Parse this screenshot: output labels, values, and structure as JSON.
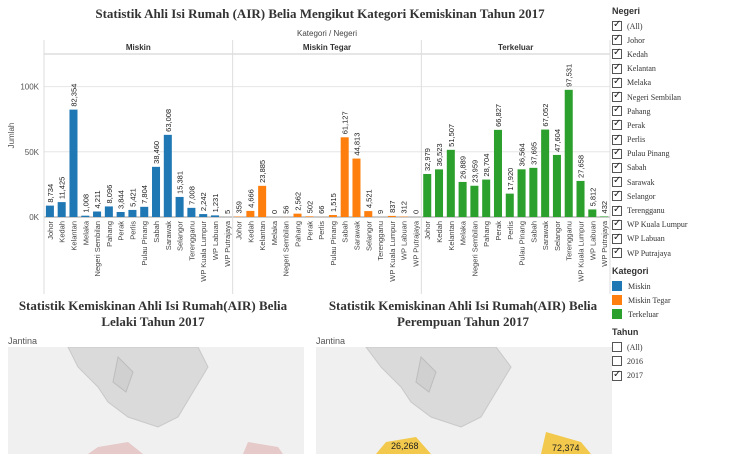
{
  "title": "Statistik Ahli Isi Rumah (AIR) Belia Mengikut Kategori Kemiskinan Tahun 2017",
  "header_label": "Kategori  /  Negeri",
  "panels": [
    "Miskin",
    "Miskin Tegar",
    "Terkeluar"
  ],
  "ylabel": "Jumlah",
  "chart_data": {
    "type": "bar",
    "title": "Statistik Ahli Isi Rumah (AIR) Belia Mengikut Kategori Kemiskinan Tahun 2017",
    "ylabel": "Jumlah",
    "ylim": [
      0,
      125000
    ],
    "yticks": [
      {
        "v": 0,
        "label": "0K"
      },
      {
        "v": 50000,
        "label": "50K"
      },
      {
        "v": 100000,
        "label": "100K"
      }
    ],
    "categories": [
      "Johor",
      "Kedah",
      "Kelantan",
      "Melaka",
      "Negeri Sembilan",
      "Pahang",
      "Perak",
      "Perlis",
      "Pulau Pinang",
      "Sabah",
      "Sarawak",
      "Selangor",
      "Terengganu",
      "WP Kuala Lumpur",
      "WP Labuan",
      "WP Putrajaya"
    ],
    "series": [
      {
        "name": "Miskin",
        "color": "#1f77b4",
        "values": [
          8734,
          11425,
          82354,
          1008,
          4211,
          8096,
          3844,
          5421,
          7804,
          38460,
          63008,
          15381,
          7008,
          2242,
          1231,
          5
        ]
      },
      {
        "name": "Miskin Tegar",
        "color": "#ff7f0e",
        "values": [
          359,
          4666,
          23885,
          0,
          56,
          2562,
          502,
          66,
          1515,
          61127,
          44813,
          4521,
          9,
          837,
          312,
          0
        ]
      },
      {
        "name": "Terkeluar",
        "color": "#2ca02c",
        "values": [
          32979,
          36523,
          51507,
          26889,
          23959,
          28704,
          66827,
          17920,
          36564,
          37695,
          67052,
          47604,
          97531,
          27658,
          5812,
          432
        ]
      }
    ]
  },
  "legend": {
    "negeri_title": "Negeri",
    "negeri_items": [
      "(All)",
      "Johor",
      "Kedah",
      "Kelantan",
      "Melaka",
      "Negeri Sembilan",
      "Pahang",
      "Perak",
      "Perlis",
      "Pulau Pinang",
      "Sabah",
      "Sarawak",
      "Selangor",
      "Terengganu",
      "WP Kuala Lumpur",
      "WP Labuan",
      "WP Putrajaya"
    ],
    "kategori_title": "Kategori",
    "kategori_items": [
      {
        "label": "Miskin",
        "color": "#1f77b4"
      },
      {
        "label": "Miskin Tegar",
        "color": "#ff7f0e"
      },
      {
        "label": "Terkeluar",
        "color": "#2ca02c"
      }
    ],
    "tahun_title": "Tahun",
    "tahun_items": [
      {
        "label": "(All)",
        "checked": false
      },
      {
        "label": "2016",
        "checked": false
      },
      {
        "label": "2017",
        "checked": true
      }
    ]
  },
  "maps": {
    "left_title": "Statistik Kemiskinan Ahli Isi Rumah(AIR) Belia Lelaki Tahun 2017",
    "right_title": "Statistik Kemiskinan Ahli Isi Rumah(AIR) Belia Perempuan Tahun 2017",
    "jantina_label": "Jantina",
    "right_labels": [
      "26,268",
      "72,374"
    ]
  }
}
